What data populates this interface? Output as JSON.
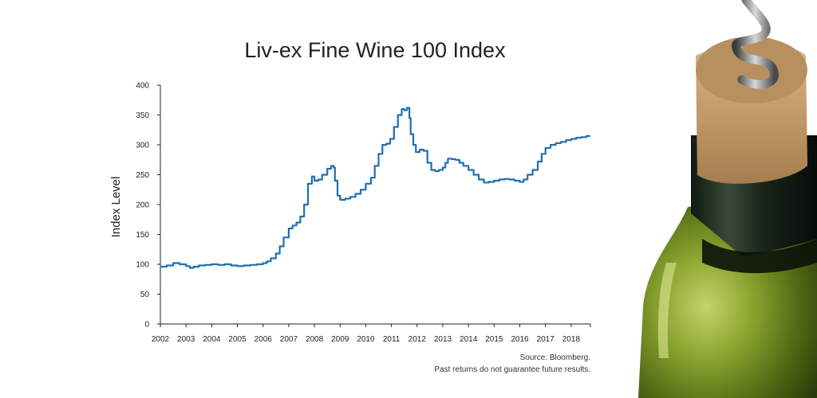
{
  "chart_data": {
    "type": "line",
    "title": "Liv-ex Fine Wine 100 Index",
    "ylabel": "Index Level",
    "xlabel": "",
    "xlim": [
      2002,
      2018.75
    ],
    "ylim": [
      0,
      400
    ],
    "yticks": [
      0,
      50,
      100,
      150,
      200,
      250,
      300,
      350,
      400
    ],
    "yticks_labels": [
      "0",
      "50",
      "100",
      "150",
      "200",
      "250",
      "300",
      "350",
      "400"
    ],
    "xticks_labels": [
      "2002",
      "2003",
      "2004",
      "2005",
      "2006",
      "2007",
      "2008",
      "2009",
      "2010",
      "2011",
      "2012",
      "2013",
      "2014",
      "2015",
      "2016",
      "2017",
      "2018"
    ],
    "grid": false,
    "legend": "none",
    "line_color": "#1f6fb0",
    "series": [
      {
        "x": [
          2002.0,
          2002.25,
          2002.5,
          2002.75,
          2003.0,
          2003.15,
          2003.3,
          2003.5,
          2003.75,
          2004.0,
          2004.25,
          2004.5,
          2004.75,
          2005.0,
          2005.25,
          2005.5,
          2005.75,
          2006.0,
          2006.15,
          2006.3,
          2006.5,
          2006.65,
          2006.8,
          2007.0,
          2007.15,
          2007.3,
          2007.45,
          2007.6,
          2007.75,
          2007.9,
          2008.0,
          2008.15,
          2008.3,
          2008.5,
          2008.65,
          2008.75,
          2008.8,
          2008.9,
          2009.0,
          2009.2,
          2009.4,
          2009.6,
          2009.8,
          2010.0,
          2010.2,
          2010.35,
          2010.5,
          2010.65,
          2010.8,
          2010.95,
          2011.1,
          2011.25,
          2011.4,
          2011.5,
          2011.6,
          2011.7,
          2011.75,
          2011.85,
          2011.95,
          2012.1,
          2012.25,
          2012.4,
          2012.55,
          2012.7,
          2012.85,
          2013.0,
          2013.1,
          2013.2,
          2013.35,
          2013.5,
          2013.65,
          2013.8,
          2014.0,
          2014.2,
          2014.4,
          2014.6,
          2014.8,
          2015.0,
          2015.2,
          2015.4,
          2015.6,
          2015.8,
          2016.0,
          2016.15,
          2016.3,
          2016.5,
          2016.7,
          2016.85,
          2017.0,
          2017.2,
          2017.4,
          2017.6,
          2017.8,
          2018.0,
          2018.2,
          2018.4,
          2018.6,
          2018.75
        ],
        "y": [
          96,
          98,
          102,
          100,
          97,
          94,
          96,
          98,
          99,
          100,
          99,
          100,
          98,
          97,
          98,
          99,
          100,
          102,
          105,
          110,
          118,
          130,
          145,
          160,
          165,
          170,
          180,
          200,
          235,
          247,
          240,
          242,
          250,
          260,
          265,
          262,
          240,
          215,
          208,
          210,
          213,
          218,
          225,
          235,
          245,
          265,
          285,
          300,
          302,
          310,
          330,
          350,
          360,
          358,
          362,
          345,
          318,
          300,
          288,
          292,
          290,
          270,
          258,
          256,
          258,
          262,
          270,
          277,
          276,
          275,
          270,
          265,
          258,
          250,
          242,
          237,
          238,
          240,
          242,
          243,
          242,
          240,
          238,
          242,
          250,
          258,
          272,
          285,
          295,
          300,
          303,
          305,
          308,
          310,
          312,
          313,
          315,
          315
        ]
      }
    ]
  },
  "source_note": "Source: Bloomberg.",
  "disclaimer": "Past returns do not guarantee future results."
}
